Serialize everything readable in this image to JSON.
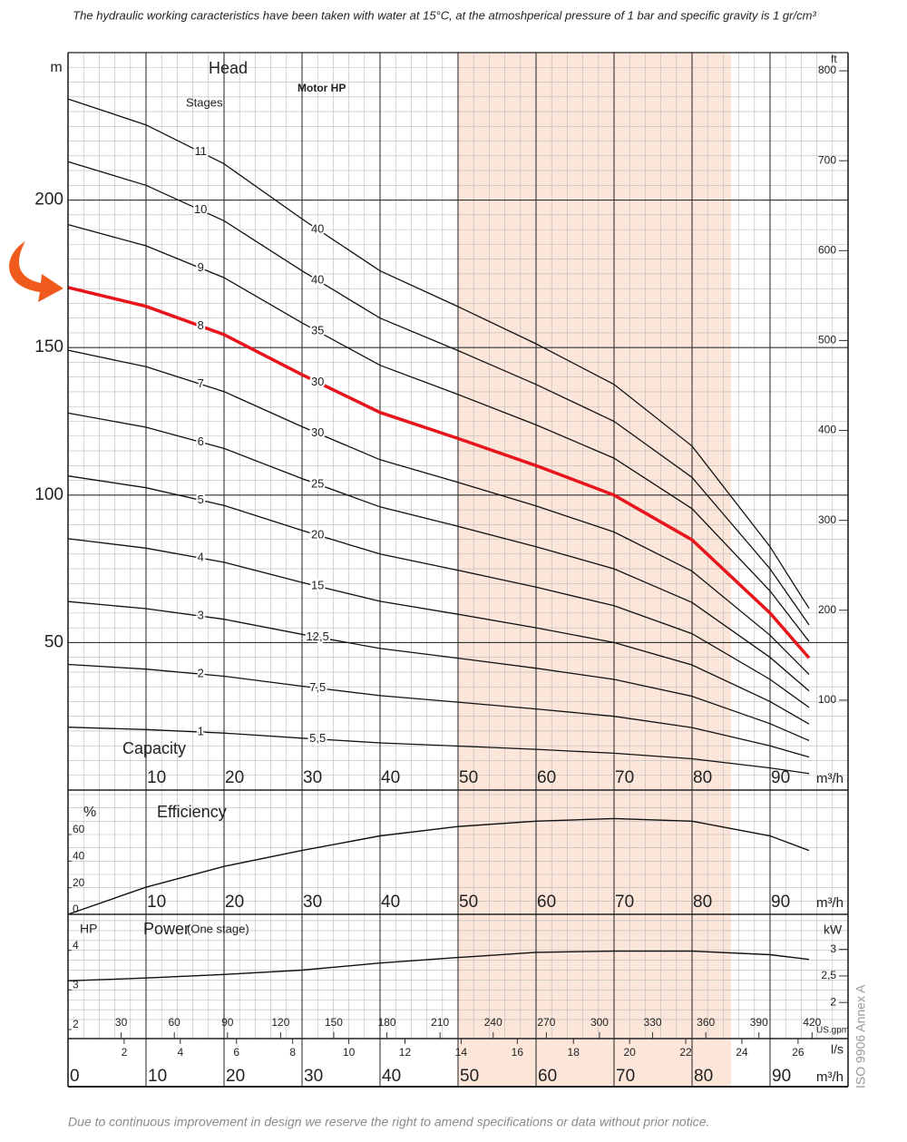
{
  "header_note": "The hydraulic working caracteristics have been taken with water at 15°C, at the atmoshperical pressure of 1 bar and specific gravity is 1 gr/cm³",
  "footer_note": "Due to continuous improvement in design we reserve the right to amend specifications or data without prior notice.",
  "side_note": "ISO 9906 Annex A",
  "chart_data": [
    {
      "type": "line",
      "title": "Head",
      "ylabel": "m",
      "y2label": "ft",
      "stages_label": "Stages",
      "motor_label": "Motor HP",
      "xlabel": "Capacity",
      "xunit": "m³/h",
      "x": [
        0,
        10,
        20,
        30,
        40,
        50,
        60,
        70,
        80,
        90,
        95
      ],
      "xlim": [
        0,
        100
      ],
      "xticks": [
        10,
        20,
        30,
        40,
        50,
        60,
        70,
        80,
        90
      ],
      "ylim": [
        0,
        250
      ],
      "yticks": [
        50,
        100,
        150,
        200
      ],
      "y2lim": [
        0,
        820.25
      ],
      "y2ticks": [
        100,
        200,
        300,
        400,
        500,
        600,
        700,
        800
      ],
      "highlight_band": [
        50,
        85
      ],
      "highlight_color": "#fce6da",
      "grid": true,
      "series": [
        {
          "name": "1",
          "motor_hp": "5,5",
          "color": "#111111",
          "values": [
            21.3,
            20.5,
            19.3,
            17.6,
            16,
            14.9,
            13.8,
            12.5,
            10.6,
            7.5,
            5.6
          ]
        },
        {
          "name": "2",
          "motor_hp": "7,5",
          "color": "#111111",
          "values": [
            42.6,
            41,
            38.6,
            35.2,
            32,
            29.8,
            27.5,
            25,
            21.2,
            15,
            11.2
          ]
        },
        {
          "name": "3",
          "motor_hp": "12,5",
          "color": "#111111",
          "values": [
            63.9,
            61.5,
            57.9,
            52.8,
            48,
            44.7,
            41.3,
            37.5,
            31.8,
            22.5,
            16.8
          ]
        },
        {
          "name": "4",
          "motor_hp": "15",
          "color": "#111111",
          "values": [
            85.2,
            82,
            77.2,
            70.4,
            64,
            59.6,
            55,
            50,
            42.4,
            30,
            22.4
          ]
        },
        {
          "name": "5",
          "motor_hp": "20",
          "color": "#111111",
          "values": [
            106.5,
            102.5,
            96.5,
            88,
            80,
            74.5,
            68.8,
            62.5,
            53,
            37.5,
            28
          ]
        },
        {
          "name": "6",
          "motor_hp": "25",
          "color": "#111111",
          "values": [
            127.8,
            123,
            115.8,
            105.6,
            96,
            89.4,
            82.5,
            75,
            63.6,
            45,
            33.6
          ]
        },
        {
          "name": "7",
          "motor_hp": "30",
          "color": "#111111",
          "values": [
            149.1,
            143.5,
            135.1,
            123.2,
            112,
            104.3,
            96.3,
            87.5,
            74.2,
            52.5,
            39.2
          ]
        },
        {
          "name": "8",
          "motor_hp": "30",
          "color": "#e8141b",
          "values": [
            170.4,
            164,
            154.4,
            140.8,
            128,
            119.2,
            110,
            100,
            84.8,
            60,
            44.8
          ]
        },
        {
          "name": "9",
          "motor_hp": "35",
          "color": "#111111",
          "values": [
            191.7,
            184.5,
            173.7,
            158.4,
            144,
            134.1,
            123.8,
            112.5,
            95.4,
            67.5,
            50.4
          ]
        },
        {
          "name": "10",
          "motor_hp": "40",
          "color": "#111111",
          "values": [
            213,
            205,
            193,
            176,
            160,
            149,
            137.5,
            125,
            106,
            75,
            56
          ]
        },
        {
          "name": "11",
          "motor_hp": "40",
          "color": "#111111",
          "values": [
            234.3,
            225.5,
            212.3,
            193.6,
            176,
            163.9,
            151.3,
            137.5,
            116.6,
            82.5,
            61.6
          ]
        }
      ]
    },
    {
      "type": "line",
      "title": "Efficiency",
      "ylabel": "%",
      "xunit": "m³/h",
      "x": [
        0,
        10,
        20,
        30,
        40,
        50,
        60,
        70,
        80,
        90,
        95
      ],
      "xlim": [
        0,
        100
      ],
      "xticks": [
        10,
        20,
        30,
        40,
        50,
        60,
        70,
        80,
        90
      ],
      "ylim": [
        0,
        93.4
      ],
      "yticks": [
        0,
        20,
        40,
        60
      ],
      "grid": true,
      "color": "#111111",
      "values": [
        0,
        20.4,
        36,
        48,
        59,
        66,
        70,
        72,
        70,
        59,
        48
      ]
    },
    {
      "type": "line",
      "title": "Power",
      "subtitle": "(One stage)",
      "ylabel": "HP",
      "y2label": "kW",
      "x": [
        0,
        10,
        20,
        30,
        40,
        50,
        60,
        70,
        80,
        90,
        95
      ],
      "xlim": [
        0,
        100
      ],
      "xticks": [
        10,
        20,
        30,
        40,
        50,
        60,
        70,
        80,
        90
      ],
      "ylim": [
        1.77,
        4.91
      ],
      "yticks": [
        2,
        3,
        4
      ],
      "y2lim": [
        1.32,
        3.66
      ],
      "y2ticks": [
        2,
        {
          "value": 2.5,
          "label": "2,5"
        },
        3
      ],
      "grid": true,
      "color": "#111111",
      "values": [
        3.23,
        3.3,
        3.39,
        3.5,
        3.68,
        3.82,
        3.95,
        3.98,
        3.98,
        3.89,
        3.77
      ]
    },
    {
      "type": "axis",
      "axes": [
        {
          "label": "US.gpm",
          "lim": [
            0,
            440.3
          ],
          "ticks": [
            30,
            60,
            90,
            120,
            150,
            180,
            210,
            240,
            270,
            300,
            330,
            360,
            390,
            420
          ]
        },
        {
          "label": "l/s",
          "lim": [
            0,
            27.78
          ],
          "ticks": [
            2,
            4,
            6,
            8,
            10,
            12,
            14,
            16,
            18,
            20,
            22,
            24,
            26
          ]
        },
        {
          "label": "m³/h",
          "lim": [
            0,
            100
          ],
          "ticks": [
            0,
            10,
            20,
            30,
            40,
            50,
            60,
            70,
            80,
            90
          ]
        }
      ]
    }
  ]
}
